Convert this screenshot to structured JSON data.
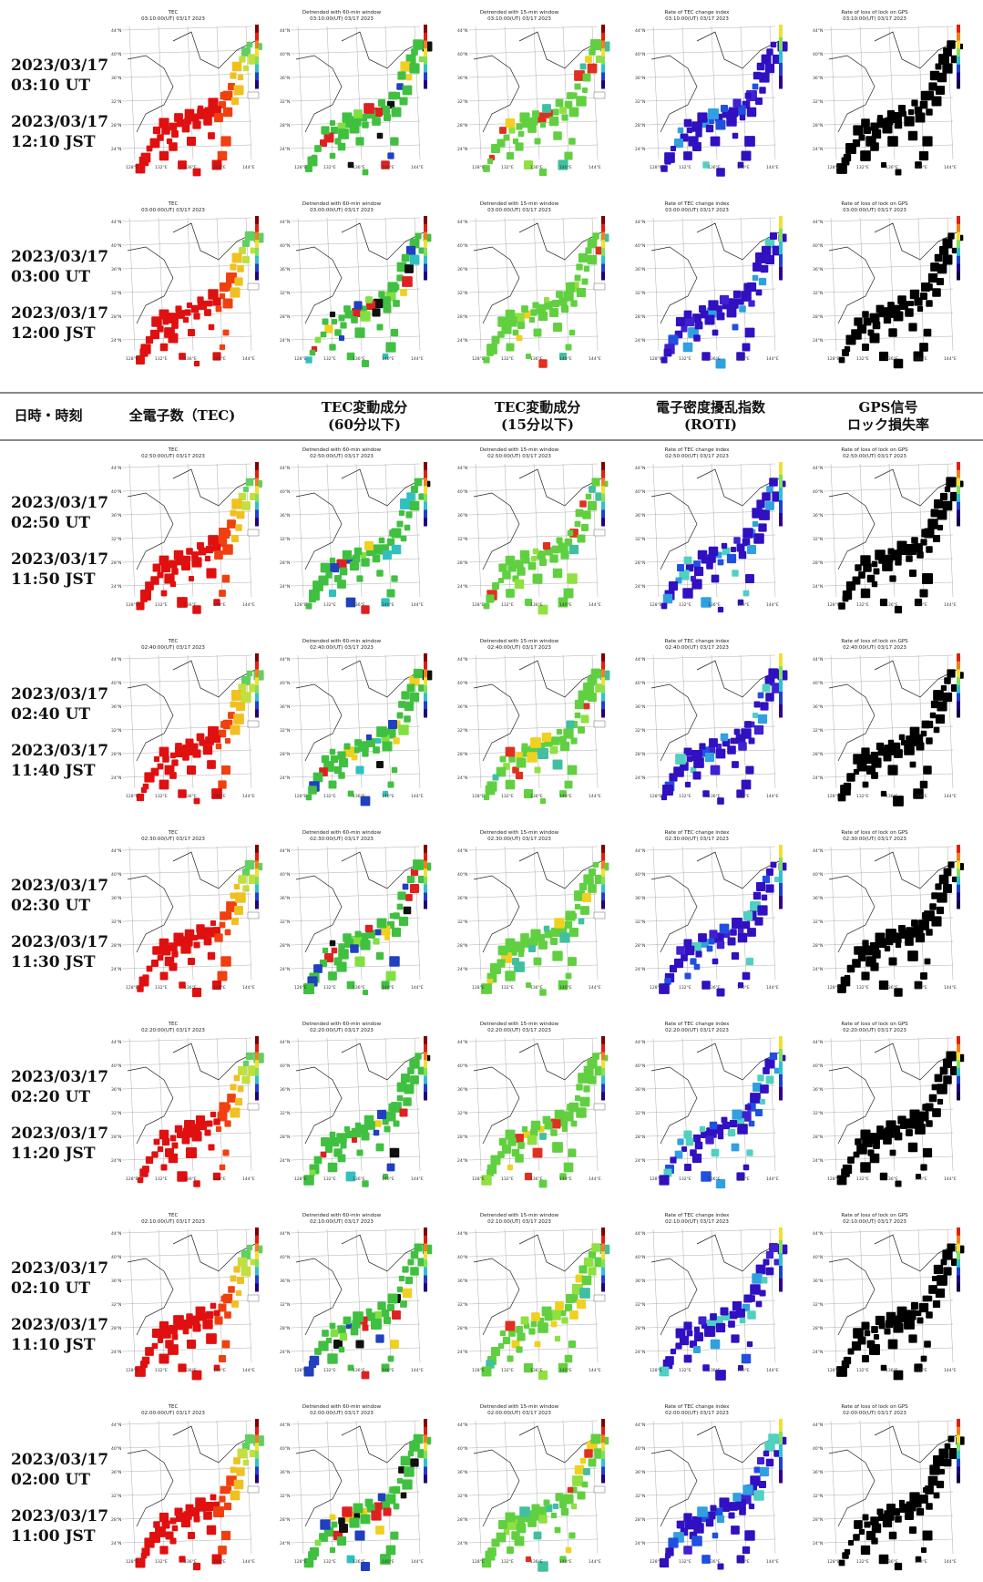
{
  "header": {
    "col_time": "日時・時刻",
    "col_tec": "全電子数（TEC)",
    "col_60_line1": "TEC変動成分",
    "col_60_line2": "(60分以下)",
    "col_15_line1": "TEC変動成分",
    "col_15_line2": "(15分以下)",
    "col_roti_line1": "電子密度擾乱指数",
    "col_roti_line2": "(ROTI)",
    "col_gps_line1": "GPS信号",
    "col_gps_line2": "ロック損失率"
  },
  "panel_titles": {
    "tec": "TEC",
    "d60": "Detrended with 60-min window",
    "d15": "Detrended with 15-min window",
    "roti": "Rate of TEC change index",
    "gps": "Rate of loss of lock on GPS"
  },
  "axis": {
    "lon_ticks": [
      "128°E",
      "132°E",
      "136°E",
      "140°E",
      "144°E"
    ],
    "lat_ticks": [
      "44°N",
      "40°N",
      "36°N",
      "32°N",
      "28°N",
      "24°N"
    ]
  },
  "rows": [
    {
      "ut": "2023/03/17 03:10 UT",
      "jst": "2023/03/17 12:10 JST",
      "stamp": "03:10:00(UT) 03/17 2023"
    },
    {
      "ut": "2023/03/17 03:00 UT",
      "jst": "2023/03/17 12:00 JST",
      "stamp": "03:00:00(UT) 03/17 2023"
    },
    {
      "ut": "2023/03/17 02:50 UT",
      "jst": "2023/03/17 11:50 JST",
      "stamp": "02:50:00(UT) 03/17 2023"
    },
    {
      "ut": "2023/03/17 02:40 UT",
      "jst": "2023/03/17 11:40 JST",
      "stamp": "02:40:00(UT) 03/17 2023"
    },
    {
      "ut": "2023/03/17 02:30 UT",
      "jst": "2023/03/17 11:30 JST",
      "stamp": "02:30:00(UT) 03/17 2023"
    },
    {
      "ut": "2023/03/17 02:20 UT",
      "jst": "2023/03/17 11:20 JST",
      "stamp": "02:20:00(UT) 03/17 2023"
    },
    {
      "ut": "2023/03/17 02:10 UT",
      "jst": "2023/03/17 11:10 JST",
      "stamp": "02:10:00(UT) 03/17 2023"
    },
    {
      "ut": "2023/03/17 02:00 UT",
      "jst": "2023/03/17 11:00 JST",
      "stamp": "02:00:00(UT) 03/17 2023"
    }
  ],
  "colors": {
    "tec": [
      "#e01010",
      "#f04010",
      "#f08020",
      "#f0c020",
      "#c0e040",
      "#60d060"
    ],
    "d60": [
      "#40c040",
      "#80e040",
      "#30c0c0",
      "#e02020",
      "#2040c0",
      "#101010",
      "#f0d020"
    ],
    "d15": [
      "#60d040",
      "#90e040",
      "#40c0a0",
      "#f0d020",
      "#e03020"
    ],
    "roti": [
      "#3010c0",
      "#4020d0",
      "#2050e0",
      "#30a0e0",
      "#50d0c0"
    ],
    "gps": [
      "#000000"
    ],
    "colorbar": [
      "#800000",
      "#e02010",
      "#f08020",
      "#f0e030",
      "#80e060",
      "#30c0d0",
      "#2040d0",
      "#200080"
    ]
  }
}
